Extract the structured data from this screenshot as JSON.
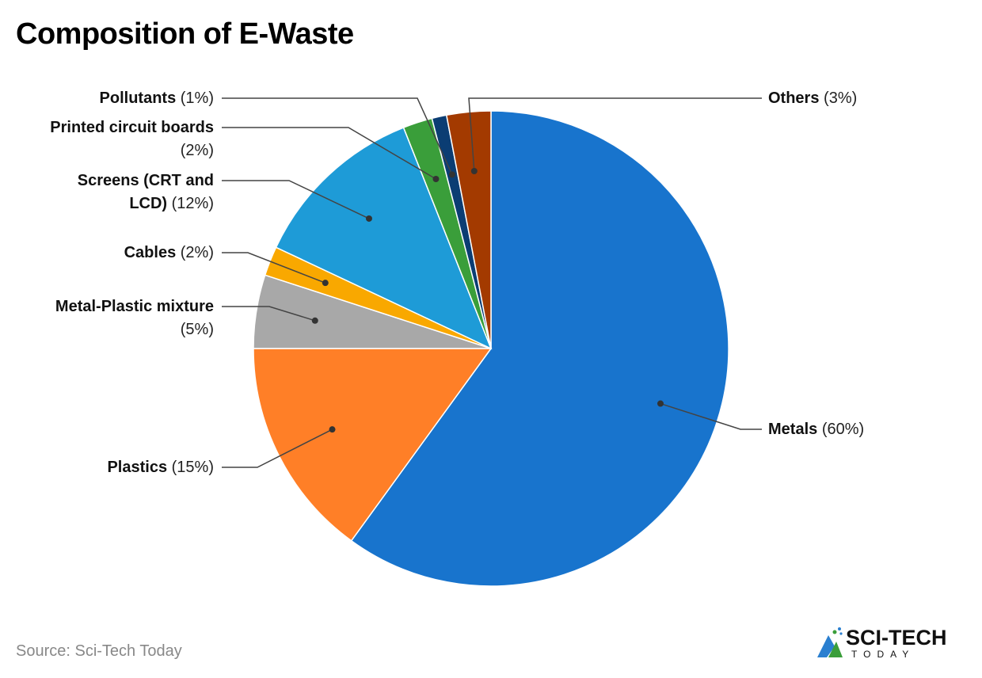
{
  "title": "Composition of E-Waste",
  "source": "Source: Sci-Tech Today",
  "logo": {
    "text": "SCI-TECH",
    "sub": "TODAY"
  },
  "chart_data": {
    "type": "pie",
    "title": "Composition of E-Waste",
    "start": "12 o'clock, clockwise",
    "slices": [
      {
        "label": "Metals",
        "value": 60,
        "pct": "(60%)",
        "color": "#1874CD"
      },
      {
        "label": "Plastics",
        "value": 15,
        "pct": "(15%)",
        "color": "#FF7F27"
      },
      {
        "label": "Metal-Plastic mixture",
        "value": 5,
        "pct": "(5%)",
        "color": "#A8A8A8"
      },
      {
        "label": "Cables",
        "value": 2,
        "pct": "(2%)",
        "color": "#F9A800"
      },
      {
        "label": "Screens (CRT and LCD)",
        "value": 12,
        "pct": "(12%)",
        "color": "#1E9BD7"
      },
      {
        "label": "Printed circuit boards",
        "value": 2,
        "pct": "(2%)",
        "color": "#3A9E3A"
      },
      {
        "label": "Pollutants",
        "value": 1,
        "pct": "(1%)",
        "color": "#0B3D73"
      },
      {
        "label": "Others",
        "value": 3,
        "pct": "(3%)",
        "color": "#A33A00"
      }
    ]
  }
}
